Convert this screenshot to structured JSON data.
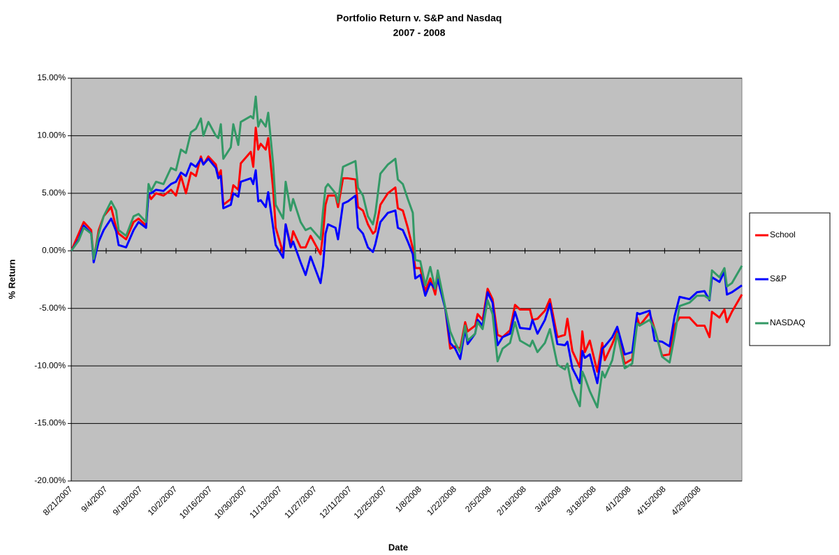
{
  "chart_data": {
    "type": "line",
    "title": "Portfolio Return v. S&P and Nasdaq",
    "subtitle": "2007 - 2008",
    "x_label": "Date",
    "y_label": "% Return",
    "x": [
      "8/21/2007",
      "8/24/2007",
      "8/26/2007",
      "8/29/2007",
      "8/30/2007",
      "9/1/2007",
      "9/3/2007",
      "9/6/2007",
      "9/8/2007",
      "9/9/2007",
      "9/12/2007",
      "9/15/2007",
      "9/17/2007",
      "9/20/2007",
      "9/21/2007",
      "9/22/2007",
      "9/24/2007",
      "9/27/2007",
      "9/30/2007",
      "10/2/2007",
      "10/4/2007",
      "10/6/2007",
      "10/8/2007",
      "10/10/2007",
      "10/12/2007",
      "10/13/2007",
      "10/15/2007",
      "10/18/2007",
      "10/19/2007",
      "10/20/2007",
      "10/21/2007",
      "10/24/2007",
      "10/25/2007",
      "10/27/2007",
      "10/28/2007",
      "11/1/2007",
      "11/2/2007",
      "11/3/2007",
      "11/4/2007",
      "11/5/2007",
      "11/7/2007",
      "11/8/2007",
      "11/10/2007",
      "11/11/2007",
      "11/14/2007",
      "11/15/2007",
      "11/17/2007",
      "11/18/2007",
      "11/21/2007",
      "11/23/2007",
      "11/25/2007",
      "11/29/2007",
      "11/30/2007",
      "12/1/2007",
      "12/2/2007",
      "12/5/2007",
      "12/6/2007",
      "12/8/2007",
      "12/10/2007",
      "12/13/2007",
      "12/14/2007",
      "12/16/2007",
      "12/18/2007",
      "12/20/2007",
      "12/21/2007",
      "12/23/2007",
      "12/26/2007",
      "12/29/2007",
      "12/30/2007",
      "1/1/2008",
      "1/3/2008",
      "1/5/2008",
      "1/6/2008",
      "1/8/2008",
      "1/10/2008",
      "1/12/2008",
      "1/14/2008",
      "1/15/2008",
      "1/18/2008",
      "1/20/2008",
      "1/22/2008",
      "1/24/2008",
      "1/26/2008",
      "1/27/2008",
      "1/30/2008",
      "1/31/2008",
      "2/2/2008",
      "2/4/2008",
      "2/6/2008",
      "2/8/2008",
      "2/10/2008",
      "2/13/2008",
      "2/15/2008",
      "2/17/2008",
      "2/21/2008",
      "2/22/2008",
      "2/24/2008",
      "2/27/2008",
      "2/29/2008",
      "3/3/2008",
      "3/6/2008",
      "3/7/2008",
      "3/9/2008",
      "3/12/2008",
      "3/13/2008",
      "3/14/2008",
      "3/16/2008",
      "3/19/2008",
      "3/21/2008",
      "3/22/2008",
      "3/25/2008",
      "3/27/2008",
      "3/30/2008",
      "4/2/2008",
      "4/4/2008",
      "4/5/2008",
      "4/9/2008",
      "4/11/2008",
      "4/14/2008",
      "4/17/2008",
      "4/19/2008",
      "4/21/2008",
      "4/25/2008",
      "4/28/2008",
      "5/1/2008",
      "5/3/2008",
      "5/4/2008",
      "5/7/2008",
      "5/9/2008",
      "5/10/2008",
      "5/12/2008",
      "5/16/2008"
    ],
    "series": [
      {
        "name": "School",
        "color": "#ff0000",
        "values": [
          0,
          1.5,
          2.5,
          1.8,
          -0.8,
          1.8,
          3.0,
          3.8,
          2.0,
          1.5,
          1.0,
          2.5,
          2.8,
          2.2,
          5.0,
          4.5,
          5.0,
          4.8,
          5.3,
          4.8,
          6.5,
          5.0,
          6.8,
          6.5,
          8.2,
          7.5,
          8.2,
          7.5,
          6.5,
          7.0,
          4.0,
          4.5,
          5.7,
          5.3,
          7.6,
          8.6,
          7.3,
          10.7,
          8.8,
          9.3,
          8.8,
          9.8,
          5.3,
          2.0,
          -0.2,
          2.3,
          0.5,
          1.7,
          0.3,
          0.3,
          1.3,
          -0.3,
          1.5,
          4.0,
          4.8,
          4.8,
          3.8,
          6.3,
          6.3,
          6.2,
          3.8,
          3.5,
          2.3,
          1.5,
          1.7,
          4.0,
          5.0,
          5.5,
          3.7,
          3.5,
          2.0,
          0.2,
          -1.5,
          -1.5,
          -3.5,
          -2.4,
          -3.8,
          -2.2,
          -5.0,
          -8.5,
          -8.3,
          -8.5,
          -6.2,
          -7.0,
          -6.5,
          -5.5,
          -6.0,
          -3.3,
          -4.2,
          -7.3,
          -7.5,
          -6.9,
          -4.7,
          -5.1,
          -5.1,
          -6.0,
          -5.9,
          -5.2,
          -4.2,
          -7.5,
          -7.3,
          -5.9,
          -8.7,
          -10.1,
          -7.0,
          -8.8,
          -7.8,
          -10.5,
          -8.0,
          -9.5,
          -8.1,
          -7.0,
          -9.8,
          -9.4,
          -5.8,
          -6.5,
          -5.4,
          -6.8,
          -9.1,
          -9.0,
          -6.5,
          -5.8,
          -5.8,
          -6.5,
          -6.5,
          -7.5,
          -5.3,
          -5.8,
          -5.1,
          -6.2,
          -5.3,
          -3.8
        ]
      },
      {
        "name": "S&P",
        "color": "#0000ff",
        "values": [
          0,
          1.0,
          2.2,
          1.5,
          -1.0,
          0.8,
          1.8,
          2.8,
          1.7,
          0.5,
          0.3,
          1.8,
          2.5,
          2.0,
          5.0,
          5.0,
          5.3,
          5.2,
          5.8,
          6.0,
          6.8,
          6.5,
          7.6,
          7.3,
          8.0,
          7.5,
          8.0,
          7.2,
          6.3,
          6.5,
          3.7,
          4.0,
          5.0,
          4.7,
          6.0,
          6.3,
          5.8,
          7.0,
          4.3,
          4.4,
          3.8,
          5.1,
          2.0,
          0.5,
          -0.6,
          2.3,
          0.3,
          0.8,
          -1.0,
          -2.1,
          -0.5,
          -2.8,
          -1.3,
          1.5,
          2.3,
          2.0,
          1.0,
          4.1,
          4.3,
          4.8,
          2.0,
          1.5,
          0.3,
          -0.1,
          0.6,
          2.5,
          3.3,
          3.5,
          2.0,
          1.8,
          0.8,
          -0.3,
          -2.4,
          -2.1,
          -3.9,
          -2.8,
          -3.3,
          -2.5,
          -5.0,
          -8.0,
          -8.5,
          -9.4,
          -6.8,
          -8.1,
          -7.2,
          -6.0,
          -6.5,
          -3.6,
          -4.5,
          -8.2,
          -7.5,
          -7.2,
          -5.3,
          -6.7,
          -6.8,
          -6.0,
          -7.2,
          -6.0,
          -4.6,
          -8.1,
          -8.2,
          -7.9,
          -10.2,
          -11.5,
          -8.7,
          -9.3,
          -9.0,
          -11.5,
          -8.5,
          -8.3,
          -7.5,
          -6.6,
          -9.0,
          -8.8,
          -5.4,
          -5.5,
          -5.2,
          -7.8,
          -7.9,
          -8.3,
          -5.7,
          -4.0,
          -4.2,
          -3.6,
          -3.5,
          -4.3,
          -2.3,
          -2.7,
          -1.8,
          -3.8,
          -3.6,
          -3.0
        ]
      },
      {
        "name": "NASDAQ",
        "color": "#339966",
        "values": [
          0,
          0.9,
          2.0,
          1.5,
          -0.7,
          1.5,
          3.0,
          4.3,
          3.5,
          1.8,
          1.3,
          3.0,
          3.2,
          2.5,
          5.8,
          5.2,
          6.0,
          5.8,
          7.2,
          7.0,
          8.8,
          8.5,
          10.3,
          10.6,
          11.5,
          10.0,
          11.2,
          10.0,
          9.8,
          11.0,
          8.0,
          9.0,
          11.0,
          9.2,
          11.2,
          11.7,
          11.5,
          13.4,
          10.8,
          11.4,
          10.8,
          12.0,
          7.5,
          4.0,
          2.8,
          6.0,
          3.5,
          4.5,
          2.5,
          1.8,
          2.0,
          1.0,
          3.5,
          5.5,
          5.8,
          5.0,
          4.2,
          7.3,
          7.5,
          7.8,
          5.5,
          4.8,
          3.0,
          2.3,
          3.3,
          6.7,
          7.5,
          8.0,
          6.2,
          5.8,
          4.5,
          3.3,
          -0.8,
          -0.9,
          -3.0,
          -1.4,
          -3.3,
          -1.7,
          -4.9,
          -7.0,
          -8.0,
          -8.8,
          -6.5,
          -7.8,
          -7.2,
          -6.2,
          -6.8,
          -4.3,
          -5.5,
          -9.6,
          -8.5,
          -8.0,
          -6.2,
          -7.8,
          -8.3,
          -7.8,
          -8.8,
          -8.0,
          -6.8,
          -9.9,
          -10.3,
          -9.8,
          -12.0,
          -13.5,
          -10.5,
          -11.0,
          -12.2,
          -13.6,
          -10.5,
          -11.0,
          -9.5,
          -7.2,
          -10.2,
          -9.8,
          -6.3,
          -6.5,
          -6.0,
          -6.8,
          -9.2,
          -9.7,
          -7.4,
          -4.8,
          -4.5,
          -3.9,
          -3.9,
          -4.2,
          -1.7,
          -2.3,
          -1.5,
          -3.1,
          -2.8,
          -1.3
        ]
      }
    ],
    "xlim": [
      "8/21/2007",
      "5/16/2008"
    ],
    "xticks": [
      "8/21/2007",
      "9/4/2007",
      "9/18/2007",
      "10/2/2007",
      "10/16/2007",
      "10/30/2007",
      "11/13/2007",
      "11/27/2007",
      "12/11/2007",
      "12/25/2007",
      "1/8/2008",
      "1/22/2008",
      "2/5/2008",
      "2/19/2008",
      "3/4/2008",
      "3/18/2008",
      "4/1/2008",
      "4/15/2008",
      "4/29/2008"
    ],
    "ylim": [
      -20,
      15
    ],
    "yticks": [
      {
        "value": -20,
        "label": "-20.00%"
      },
      {
        "value": -15,
        "label": "-15.00%"
      },
      {
        "value": -10,
        "label": "-10.00%"
      },
      {
        "value": -5,
        "label": "-5.00%"
      },
      {
        "value": 0,
        "label": "0.00%"
      },
      {
        "value": 5,
        "label": "5.00%"
      },
      {
        "value": 10,
        "label": "10.00%"
      },
      {
        "value": 15,
        "label": "15.00%"
      }
    ],
    "grid": true,
    "legend": "right",
    "plot_background": "#c0c0c0"
  }
}
